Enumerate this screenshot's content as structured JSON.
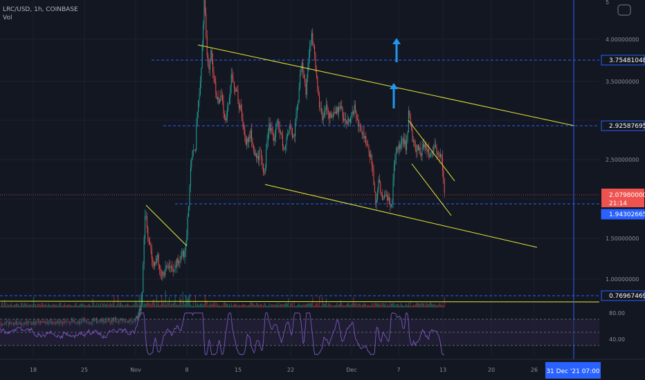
{
  "header": {
    "symbol": "LRC/USD, 1h, COINBASE",
    "vol_label": "Vol"
  },
  "colors": {
    "background": "#131722",
    "up": "#26a69a",
    "down": "#ef5350",
    "level_line": "#2962ff",
    "trendline": "#e8e838",
    "rsi_line": "#7e57c2",
    "arrow": "#2196f3",
    "price_badge": "#ef5350",
    "level_badge": "#2962ff"
  },
  "chart_data": {
    "type": "candlestick",
    "title": "LRC/USD, 1h, COINBASE",
    "price_axis_ticks": [
      "4.00000000",
      "3.50000000",
      "3.00000000",
      "2.50000000",
      "2.00000000",
      "1.50000000",
      "1.00000000"
    ],
    "price_axis_top": "5",
    "x_tick_labels": [
      "18",
      "25",
      "Nov",
      "8",
      "15",
      "22",
      "Dec",
      "7",
      "13",
      "20",
      "26"
    ],
    "horizontal_levels": [
      {
        "label": "3.75481048",
        "value": 3.75481048
      },
      {
        "label": "2.92587695",
        "value": 2.92587695
      },
      {
        "label": "1.94302665",
        "value": 1.94302665
      },
      {
        "label": "0.76967469",
        "value": 0.76967469
      }
    ],
    "last_price": {
      "label": "2.07980000",
      "value": 2.0798,
      "countdown": "21:14"
    },
    "crosshair_date": "31 Dec '21   07:00",
    "rsi": {
      "ticks": [
        "80.00",
        "40.00"
      ],
      "levels": [
        70,
        50,
        30
      ]
    },
    "price_path": [
      [
        0,
        0.81
      ],
      [
        90,
        0.82
      ],
      [
        195,
        0.84
      ],
      [
        200,
        0.9
      ],
      [
        205,
        1.05
      ],
      [
        210,
        1.95
      ],
      [
        213,
        1.7
      ],
      [
        217,
        1.55
      ],
      [
        222,
        1.38
      ],
      [
        227,
        1.48
      ],
      [
        232,
        1.3
      ],
      [
        238,
        1.33
      ],
      [
        244,
        1.42
      ],
      [
        250,
        1.35
      ],
      [
        256,
        1.42
      ],
      [
        262,
        1.45
      ],
      [
        268,
        1.55
      ],
      [
        272,
        1.9
      ],
      [
        275,
        2.3
      ],
      [
        278,
        2.55
      ],
      [
        282,
        2.5
      ],
      [
        285,
        2.9
      ],
      [
        289,
        3.15
      ],
      [
        292,
        3.5
      ],
      [
        295,
        4.1
      ],
      [
        298,
        3.6
      ],
      [
        301,
        3.3
      ],
      [
        305,
        3.5
      ],
      [
        310,
        3.2
      ],
      [
        315,
        3.0
      ],
      [
        320,
        3.1
      ],
      [
        325,
        2.8
      ],
      [
        330,
        3.0
      ],
      [
        335,
        3.3
      ],
      [
        340,
        3.15
      ],
      [
        345,
        3.0
      ],
      [
        350,
        2.85
      ],
      [
        355,
        2.6
      ],
      [
        362,
        2.7
      ],
      [
        370,
        2.45
      ],
      [
        376,
        2.5
      ],
      [
        382,
        2.25
      ],
      [
        388,
        2.8
      ],
      [
        395,
        2.65
      ],
      [
        402,
        2.8
      ],
      [
        410,
        2.55
      ],
      [
        418,
        2.75
      ],
      [
        425,
        2.65
      ],
      [
        430,
        3.0
      ],
      [
        436,
        3.4
      ],
      [
        442,
        3.1
      ],
      [
        446,
        3.45
      ],
      [
        450,
        3.7
      ],
      [
        453,
        3.55
      ],
      [
        457,
        3.3
      ],
      [
        461,
        3.0
      ],
      [
        466,
        2.85
      ],
      [
        472,
        2.95
      ],
      [
        478,
        2.85
      ],
      [
        485,
        2.9
      ],
      [
        492,
        3.0
      ],
      [
        498,
        2.8
      ],
      [
        505,
        2.85
      ],
      [
        512,
        2.95
      ],
      [
        518,
        2.8
      ],
      [
        525,
        2.7
      ],
      [
        532,
        2.55
      ],
      [
        538,
        2.4
      ],
      [
        543,
        1.95
      ],
      [
        547,
        2.25
      ],
      [
        552,
        2.05
      ],
      [
        557,
        2.1
      ],
      [
        562,
        2.0
      ],
      [
        566,
        1.96
      ],
      [
        570,
        2.45
      ],
      [
        576,
        2.55
      ],
      [
        582,
        2.65
      ],
      [
        587,
        2.55
      ],
      [
        591,
        2.95
      ],
      [
        596,
        2.6
      ],
      [
        602,
        2.55
      ],
      [
        608,
        2.5
      ],
      [
        614,
        2.6
      ],
      [
        620,
        2.5
      ],
      [
        627,
        2.55
      ],
      [
        633,
        2.5
      ],
      [
        638,
        2.45
      ],
      [
        643,
        2.08
      ]
    ],
    "drawings": {
      "channel_upper": [
        [
          286,
          4.2
        ],
        [
          830,
          2.92
        ]
      ],
      "channel_lower": [
        [
          383,
          2.25
        ],
        [
          776,
          1.52
        ]
      ],
      "wedge_upper": [
        [
          590,
          2.95
        ],
        [
          657,
          2.2
        ]
      ],
      "wedge_lower": [
        [
          595,
          2.3
        ],
        [
          652,
          1.82
        ]
      ],
      "nov_trend": [
        [
          211,
          1.95
        ],
        [
          270,
          1.48
        ]
      ]
    }
  }
}
